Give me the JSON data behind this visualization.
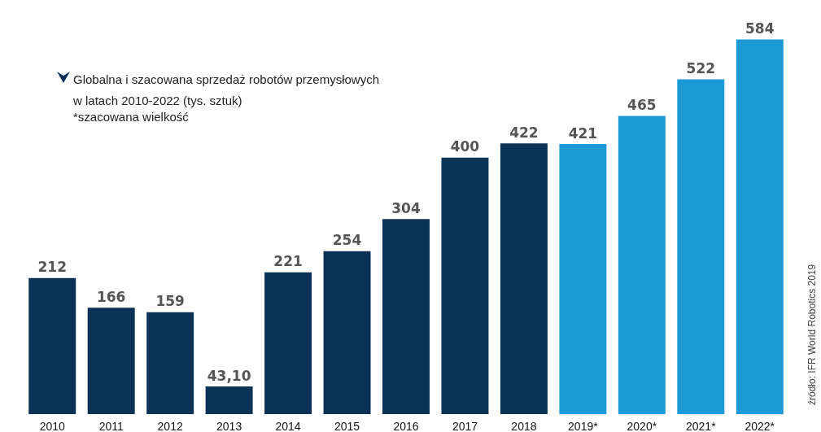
{
  "chart_data": {
    "type": "bar",
    "title": "Globalna i szacowana sprzedaż robotów przemysłowych\nw latach 2010-2022 (tys. sztuk)",
    "subtitle": "*szacowana wielkość",
    "annotations": [
      "źródło: IFR World Robotics 2019"
    ],
    "categories": [
      "2010",
      "2011",
      "2012",
      "2013",
      "2014",
      "2015",
      "2016",
      "2017",
      "2018",
      "2019*",
      "2020*",
      "2021*",
      "2022*"
    ],
    "values": [
      212,
      166,
      159,
      43.1,
      221,
      254,
      304,
      400,
      422,
      421,
      465,
      522,
      584
    ],
    "value_labels": [
      "212",
      "166",
      "159",
      "43,10",
      "221",
      "254",
      "304",
      "400",
      "422",
      "421",
      "465",
      "522",
      "584"
    ],
    "colors": [
      "#0c3157",
      "#0c3157",
      "#0c3157",
      "#0c3157",
      "#0c3157",
      "#0c3157",
      "#0c3157",
      "#0c3157",
      "#0c3157",
      "#1b9ad5",
      "#1b9ad5",
      "#1b9ad5",
      "#1b9ad5"
    ]
  }
}
